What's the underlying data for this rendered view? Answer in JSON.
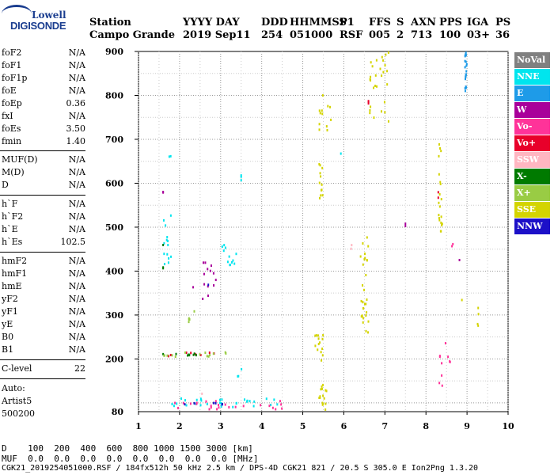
{
  "logo": {
    "line1": "Lowell",
    "line2": "DIGISONDE"
  },
  "header": {
    "line1": [
      "Station",
      "YYYY DAY",
      "DDD",
      "HHMMSS",
      "P1",
      "FFS",
      "S",
      "AXN",
      "PPS",
      "IGA",
      "PS"
    ],
    "line2": [
      "Campo Grande",
      "2019 Sep11",
      "254",
      "051000",
      "RSF",
      "005",
      "2",
      "713",
      "100",
      "03+",
      "36"
    ]
  },
  "sidebar": {
    "group1": [
      {
        "label": "foF2",
        "value": "N/A"
      },
      {
        "label": "foF1",
        "value": "N/A"
      },
      {
        "label": "foF1p",
        "value": "N/A"
      },
      {
        "label": "foE",
        "value": "N/A"
      },
      {
        "label": "foEp",
        "value": "0.36"
      },
      {
        "label": "fxI",
        "value": "N/A"
      },
      {
        "label": "foEs",
        "value": "3.50"
      },
      {
        "label": "fmin",
        "value": "1.40"
      }
    ],
    "group2": [
      {
        "label": "MUF(D)",
        "value": "N/A"
      },
      {
        "label": "M(D)",
        "value": "N/A"
      },
      {
        "label": "D",
        "value": "N/A"
      }
    ],
    "group3": [
      {
        "label": "h`F",
        "value": "N/A"
      },
      {
        "label": "h`F2",
        "value": "N/A"
      },
      {
        "label": "h`E",
        "value": "N/A"
      },
      {
        "label": "h`Es",
        "value": "102.5"
      }
    ],
    "group4": [
      {
        "label": "hmF2",
        "value": "N/A"
      },
      {
        "label": "hmF1",
        "value": "N/A"
      },
      {
        "label": "hmE",
        "value": "N/A"
      },
      {
        "label": "yF2",
        "value": "N/A"
      },
      {
        "label": "yF1",
        "value": "N/A"
      },
      {
        "label": "yE",
        "value": "N/A"
      },
      {
        "label": "B0",
        "value": "N/A"
      },
      {
        "label": "B1",
        "value": "N/A"
      }
    ],
    "clevel": {
      "label": "C-level",
      "value": "22"
    },
    "auto": {
      "line1": "Auto:",
      "line2": "Artist5",
      "line3": "500200"
    }
  },
  "legend": [
    {
      "label": "NoVal",
      "color": "#808080"
    },
    {
      "label": "NNE",
      "color": "#00e5ee"
    },
    {
      "label": "E",
      "color": "#1e9be8"
    },
    {
      "label": "W",
      "color": "#a8009a"
    },
    {
      "label": "Vo-",
      "color": "#ff3399"
    },
    {
      "label": "Vo+",
      "color": "#e8002a"
    },
    {
      "label": "SSW",
      "color": "#ffb6c1"
    },
    {
      "label": "X-",
      "color": "#007a00"
    },
    {
      "label": "X+",
      "color": "#99cc44"
    },
    {
      "label": "SSE",
      "color": "#d4d400"
    },
    {
      "label": "NNW",
      "color": "#1c10c8"
    }
  ],
  "footer": {
    "line1": "D    100  200  400  600  800 1000 1500 3000 [km]",
    "line2": "MUF  0.0  0.0  0.0  0.0  0.0  0.0  0.0  0.0 [MHz]",
    "line3": "CGK21_2019254051000.RSF / 184fx512h 50 kHz 2.5 km / DPS-4D CGK21 821 / 20.5 S 305.0 E Ion2Png 1.3.20"
  },
  "chart_data": {
    "type": "scatter",
    "xlim": [
      1,
      10
    ],
    "ylim": [
      80,
      900
    ],
    "xticks": [
      1,
      2,
      3,
      4,
      5,
      6,
      7,
      8,
      9,
      10
    ],
    "yticks": [
      200,
      300,
      400,
      500,
      600,
      700,
      800,
      900
    ],
    "ytick_bottom_label": "80",
    "grid": true,
    "series": [
      {
        "name": "NoVal",
        "clusters": []
      },
      {
        "name": "NNE",
        "clusters": [
          {
            "x": [
              1.6,
              1.8
            ],
            "y": [
              410,
              530
            ],
            "n": 14
          },
          {
            "x": [
              3.0,
              3.5
            ],
            "y": [
              400,
              460
            ],
            "n": 12
          },
          {
            "x": [
              1.8,
              4.5
            ],
            "y": [
              90,
              110
            ],
            "n": 30
          },
          {
            "x": [
              3.4,
              3.6
            ],
            "y": [
              160,
              180
            ],
            "n": 3
          },
          {
            "x": [
              1.7,
              1.8
            ],
            "y": [
              660,
              670
            ],
            "n": 2
          },
          {
            "x": [
              5.9,
              6.0
            ],
            "y": [
              665,
              670
            ],
            "n": 1
          },
          {
            "x": [
              3.5,
              3.5
            ],
            "y": [
              600,
              650
            ],
            "n": 3
          }
        ]
      },
      {
        "name": "E",
        "clusters": [
          {
            "x": [
              8.95,
              9.0
            ],
            "y": [
              810,
              900
            ],
            "n": 20
          }
        ]
      },
      {
        "name": "W",
        "clusters": [
          {
            "x": [
              2.3,
              2.9
            ],
            "y": [
              330,
              420
            ],
            "n": 14
          },
          {
            "x": [
              7.5,
              7.5
            ],
            "y": [
              500,
              515
            ],
            "n": 2
          },
          {
            "x": [
              8.8,
              8.85
            ],
            "y": [
              425,
              430
            ],
            "n": 1
          },
          {
            "x": [
              1.6,
              1.6
            ],
            "y": [
              575,
              585
            ],
            "n": 2
          }
        ]
      },
      {
        "name": "Vo-",
        "clusters": [
          {
            "x": [
              1.7,
              4.8
            ],
            "y": [
              85,
              105
            ],
            "n": 25
          },
          {
            "x": [
              8.3,
              8.6
            ],
            "y": [
              120,
              240
            ],
            "n": 10
          },
          {
            "x": [
              8.6,
              8.7
            ],
            "y": [
              450,
              470
            ],
            "n": 2
          }
        ]
      },
      {
        "name": "Vo+",
        "clusters": [
          {
            "x": [
              1.6,
              3.1
            ],
            "y": [
              205,
              215
            ],
            "n": 8
          },
          {
            "x": [
              6.6,
              6.6
            ],
            "y": [
              780,
              800
            ],
            "n": 3
          },
          {
            "x": [
              8.3,
              8.3
            ],
            "y": [
              560,
              580
            ],
            "n": 2
          }
        ]
      },
      {
        "name": "SSW",
        "clusters": [
          {
            "x": [
              6.15,
              6.2
            ],
            "y": [
              450,
              465
            ],
            "n": 2
          },
          {
            "x": [
              2.5,
              2.6
            ],
            "y": [
              120,
              125
            ],
            "n": 1
          }
        ]
      },
      {
        "name": "X-",
        "clusters": [
          {
            "x": [
              1.6,
              2.9
            ],
            "y": [
              208,
              214
            ],
            "n": 8
          },
          {
            "x": [
              1.6,
              1.6
            ],
            "y": [
              405,
              410
            ],
            "n": 2
          },
          {
            "x": [
              1.6,
              1.6
            ],
            "y": [
              455,
              460
            ],
            "n": 1
          }
        ]
      },
      {
        "name": "X+",
        "clusters": [
          {
            "x": [
              1.6,
              3.4
            ],
            "y": [
              205,
              215
            ],
            "n": 14
          },
          {
            "x": [
              2.2,
              2.5
            ],
            "y": [
              280,
              310
            ],
            "n": 6
          }
        ]
      },
      {
        "name": "SSE",
        "clusters": [
          {
            "x": [
              5.4,
              5.6
            ],
            "y": [
              80,
              150
            ],
            "n": 16
          },
          {
            "x": [
              5.3,
              5.5
            ],
            "y": [
              190,
              270
            ],
            "n": 14
          },
          {
            "x": [
              5.4,
              5.5
            ],
            "y": [
              565,
              645
            ],
            "n": 12
          },
          {
            "x": [
              5.4,
              5.7
            ],
            "y": [
              720,
              800
            ],
            "n": 12
          },
          {
            "x": [
              6.4,
              6.6
            ],
            "y": [
              260,
              480
            ],
            "n": 30
          },
          {
            "x": [
              6.6,
              7.1
            ],
            "y": [
              740,
              900
            ],
            "n": 28
          },
          {
            "x": [
              8.3,
              8.4
            ],
            "y": [
              490,
              700
            ],
            "n": 20
          },
          {
            "x": [
              9.25,
              9.3
            ],
            "y": [
              270,
              320
            ],
            "n": 4
          },
          {
            "x": [
              8.85,
              8.9
            ],
            "y": [
              330,
              340
            ],
            "n": 1
          }
        ]
      },
      {
        "name": "NNW",
        "clusters": [
          {
            "x": [
              2.0,
              3.3
            ],
            "y": [
              88,
              100
            ],
            "n": 6
          },
          {
            "x": [
              2.7,
              2.7
            ],
            "y": [
              365,
              370
            ],
            "n": 1
          }
        ]
      }
    ]
  }
}
